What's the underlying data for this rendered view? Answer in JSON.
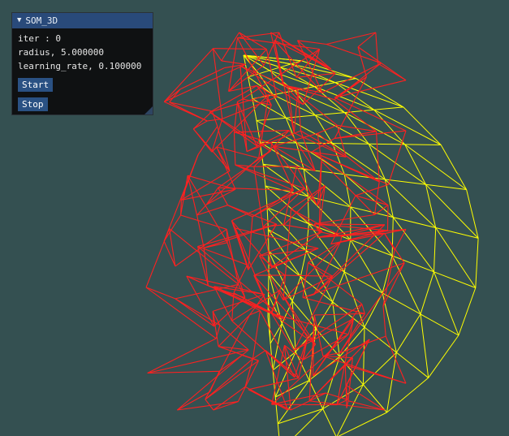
{
  "window": {
    "title": "SOM_3D",
    "collapse_arrow": "triangle-down-icon"
  },
  "panel": {
    "iter_text": "iter : 0",
    "radius_text": "radius, 5.000000",
    "learning_rate_text": "learning_rate, 0.100000",
    "start_label": "Start",
    "stop_label": "Stop"
  },
  "scene": {
    "background_color": "#345051",
    "som_grid_color": "#ff2020",
    "target_surface_color": "#ffff00"
  }
}
